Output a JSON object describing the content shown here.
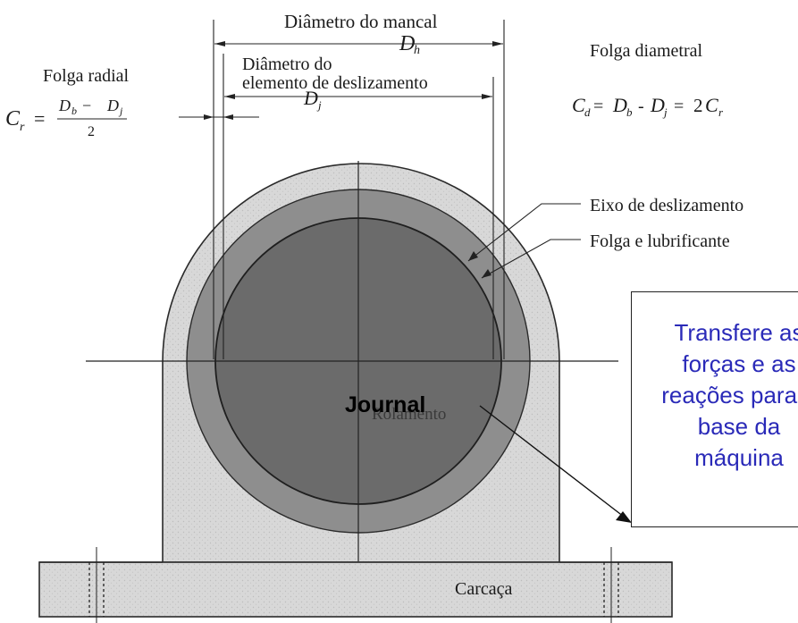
{
  "labels": {
    "diametro_mancal": "Diâmetro do mancal",
    "Dh": "D",
    "Dh_sub": "h",
    "diametro_elemento_line1": "Diâmetro do",
    "diametro_elemento_line2": "elemento de deslizamento",
    "Dj": "D",
    "Dj_sub": "j",
    "folga_radial": "Folga radial",
    "folga_radial_formula_left": "C",
    "folga_radial_formula_left_sub": "r",
    "folga_radial_numerator": "D",
    "folga_radial_numerator_b": "b",
    "folga_radial_numerator_minus": " − ",
    "folga_radial_numerator_j": "j",
    "folga_radial_denominator": "2",
    "folga_diametral": "Folga diametral",
    "folga_diametral_formula": "C",
    "folga_diametral_formula_rest": " = D",
    "folga_diametral_formula_tail": " - D",
    "folga_diametral_formula_end": " = 2C",
    "eixo_deslizamento": "Eixo de deslizamento",
    "folga_lubrificante": "Folga e lubrificante",
    "rolamento": "Rolamento",
    "carcaca": "Carcaça",
    "journal": "Journal"
  },
  "note": {
    "text": "Transfere as\nforças e as\nreações para a\nbase da\nmáquina"
  },
  "colors": {
    "housing": "#d6d6d6",
    "lubricant_ring": "#8e8e8e",
    "journal": "#6b6b6b",
    "note_text": "#2a2ab8"
  }
}
